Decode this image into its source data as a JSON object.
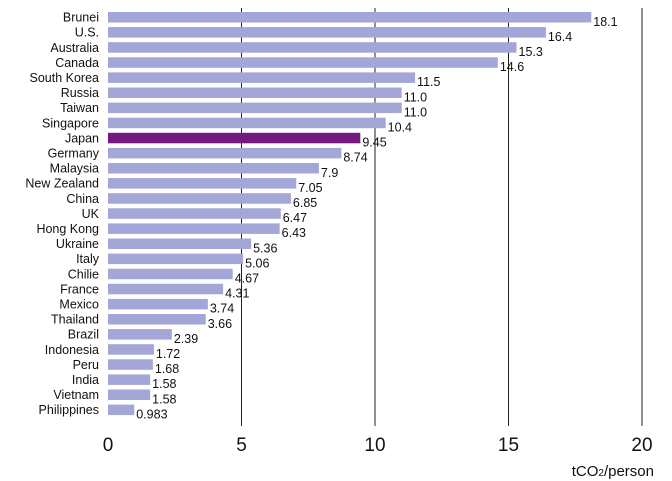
{
  "chart_data": {
    "type": "bar",
    "orientation": "horizontal",
    "categories": [
      "Brunei",
      "U.S.",
      "Australia",
      "Canada",
      "South Korea",
      "Russia",
      "Taiwan",
      "Singapore",
      "Japan",
      "Germany",
      "Malaysia",
      "New Zealand",
      "China",
      "UK",
      "Hong Kong",
      "Ukraine",
      "Italy",
      "Chilie",
      "France",
      "Mexico",
      "Thailand",
      "Brazil",
      "Indonesia",
      "Peru",
      "India",
      "Vietnam",
      "Philippines"
    ],
    "values": [
      18.1,
      16.4,
      15.3,
      14.6,
      11.5,
      11.0,
      11.0,
      10.4,
      9.45,
      8.74,
      7.9,
      7.05,
      6.85,
      6.47,
      6.43,
      5.36,
      5.06,
      4.67,
      4.31,
      3.74,
      3.66,
      2.39,
      1.72,
      1.68,
      1.58,
      1.58,
      0.983
    ],
    "value_labels": [
      "18.1",
      "16.4",
      "15.3",
      "14.6",
      "11.5",
      "11.0",
      "11.0",
      "10.4",
      "9.45",
      "8.74",
      "7.9",
      "7.05",
      "6.85",
      "6.47",
      "6.43",
      "5.36",
      "5.06",
      "4.67",
      "4.31",
      "3.74",
      "3.66",
      "2.39",
      "1.72",
      "1.68",
      "1.58",
      "1.58",
      "0.983"
    ],
    "highlight": "Japan",
    "xlim": [
      0,
      20
    ],
    "xticks": [
      0,
      5,
      10,
      15,
      20
    ],
    "xticklabels": [
      "0",
      "5",
      "10",
      "15",
      "20"
    ],
    "xlabel_unit": "tCO",
    "xlabel_sub": "2",
    "xlabel_suffix": "/person",
    "grid": "vertical",
    "colors": {
      "bar": "#a3a6d6",
      "highlight": "#731a7e",
      "grid": "#222222"
    }
  }
}
